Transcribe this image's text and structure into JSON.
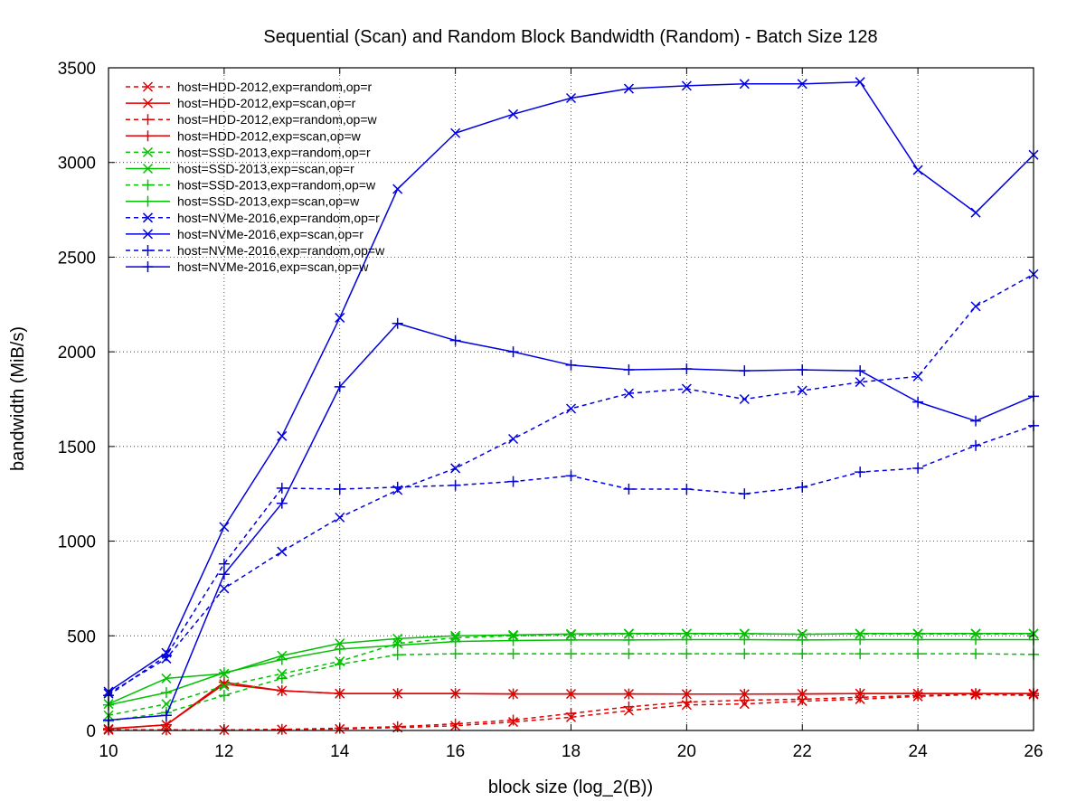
{
  "chart_data": {
    "type": "line",
    "title": "Sequential (Scan) and Random Block Bandwidth (Random) - Batch Size 128",
    "xlabel": "block size (log_2(B))",
    "ylabel": "bandwidth (MiB/s)",
    "xlim": [
      10,
      26
    ],
    "ylim": [
      0,
      3500
    ],
    "xticks": [
      10,
      12,
      14,
      16,
      18,
      20,
      22,
      24,
      26
    ],
    "yticks": [
      0,
      500,
      1000,
      1500,
      2000,
      2500,
      3000,
      3500
    ],
    "grid": true,
    "legend_position": "top-left",
    "x": [
      10,
      11,
      12,
      13,
      14,
      15,
      16,
      17,
      18,
      19,
      20,
      21,
      22,
      23,
      24,
      25,
      26
    ],
    "series": [
      {
        "name": "host=HDD-2012,exp=random,op=r",
        "color": "#e00000",
        "dash": true,
        "marker": "x",
        "values": [
          3,
          3,
          3,
          5,
          8,
          15,
          25,
          45,
          70,
          105,
          135,
          140,
          155,
          165,
          180,
          190,
          190
        ]
      },
      {
        "name": "host=HDD-2012,exp=scan,op=r",
        "color": "#e00000",
        "dash": false,
        "marker": "x",
        "values": [
          8,
          30,
          245,
          210,
          195,
          195,
          195,
          193,
          193,
          193,
          192,
          192,
          193,
          195,
          195,
          195,
          195
        ]
      },
      {
        "name": "host=HDD-2012,exp=random,op=w",
        "color": "#e00000",
        "dash": true,
        "marker": "+",
        "values": [
          3,
          3,
          3,
          6,
          12,
          20,
          35,
          55,
          90,
          125,
          150,
          160,
          165,
          175,
          185,
          190,
          185
        ]
      },
      {
        "name": "host=HDD-2012,exp=scan,op=w",
        "color": "#e00000",
        "dash": false,
        "marker": "+",
        "values": [
          10,
          30,
          255,
          210,
          195,
          195,
          195,
          193,
          193,
          193,
          192,
          192,
          193,
          195,
          195,
          195,
          195
        ]
      },
      {
        "name": "host=SSD-2013,exp=random,op=r",
        "color": "#00c000",
        "dash": true,
        "marker": "x",
        "values": [
          80,
          140,
          235,
          300,
          365,
          460,
          490,
          500,
          505,
          510,
          510,
          510,
          510,
          510,
          510,
          510,
          510
        ]
      },
      {
        "name": "host=SSD-2013,exp=scan,op=r",
        "color": "#00c000",
        "dash": false,
        "marker": "x",
        "values": [
          140,
          275,
          300,
          395,
          460,
          485,
          500,
          505,
          510,
          512,
          512,
          512,
          508,
          512,
          512,
          512,
          512
        ]
      },
      {
        "name": "host=SSD-2013,exp=random,op=w",
        "color": "#00c000",
        "dash": true,
        "marker": "+",
        "values": [
          50,
          95,
          185,
          275,
          350,
          400,
          405,
          405,
          405,
          405,
          405,
          405,
          405,
          405,
          405,
          405,
          402
        ]
      },
      {
        "name": "host=SSD-2013,exp=scan,op=w",
        "color": "#00c000",
        "dash": false,
        "marker": "+",
        "values": [
          135,
          200,
          305,
          375,
          430,
          450,
          470,
          475,
          478,
          478,
          480,
          480,
          478,
          480,
          480,
          480,
          480
        ]
      },
      {
        "name": "host=NVMe-2016,exp=random,op=r",
        "color": "#0000e0",
        "dash": true,
        "marker": "x",
        "values": [
          195,
          380,
          750,
          945,
          1125,
          1270,
          1385,
          1540,
          1700,
          1780,
          1805,
          1750,
          1795,
          1840,
          1870,
          2240,
          2410
        ]
      },
      {
        "name": "host=NVMe-2016,exp=scan,op=r",
        "color": "#0000e0",
        "dash": false,
        "marker": "x",
        "values": [
          205,
          410,
          1075,
          1555,
          2180,
          2860,
          3155,
          3255,
          3340,
          3390,
          3405,
          3415,
          3415,
          3425,
          2960,
          2735,
          3040
        ]
      },
      {
        "name": "host=NVMe-2016,exp=random,op=w",
        "color": "#0000e0",
        "dash": true,
        "marker": "+",
        "values": [
          185,
          395,
          880,
          1280,
          1275,
          1285,
          1295,
          1315,
          1345,
          1275,
          1275,
          1250,
          1285,
          1365,
          1385,
          1505,
          1610
        ]
      },
      {
        "name": "host=NVMe-2016,exp=scan,op=w",
        "color": "#0000e0",
        "dash": false,
        "marker": "+",
        "values": [
          55,
          80,
          825,
          1200,
          1815,
          2150,
          2060,
          2000,
          1930,
          1905,
          1910,
          1900,
          1905,
          1900,
          1735,
          1635,
          1765
        ]
      }
    ]
  }
}
